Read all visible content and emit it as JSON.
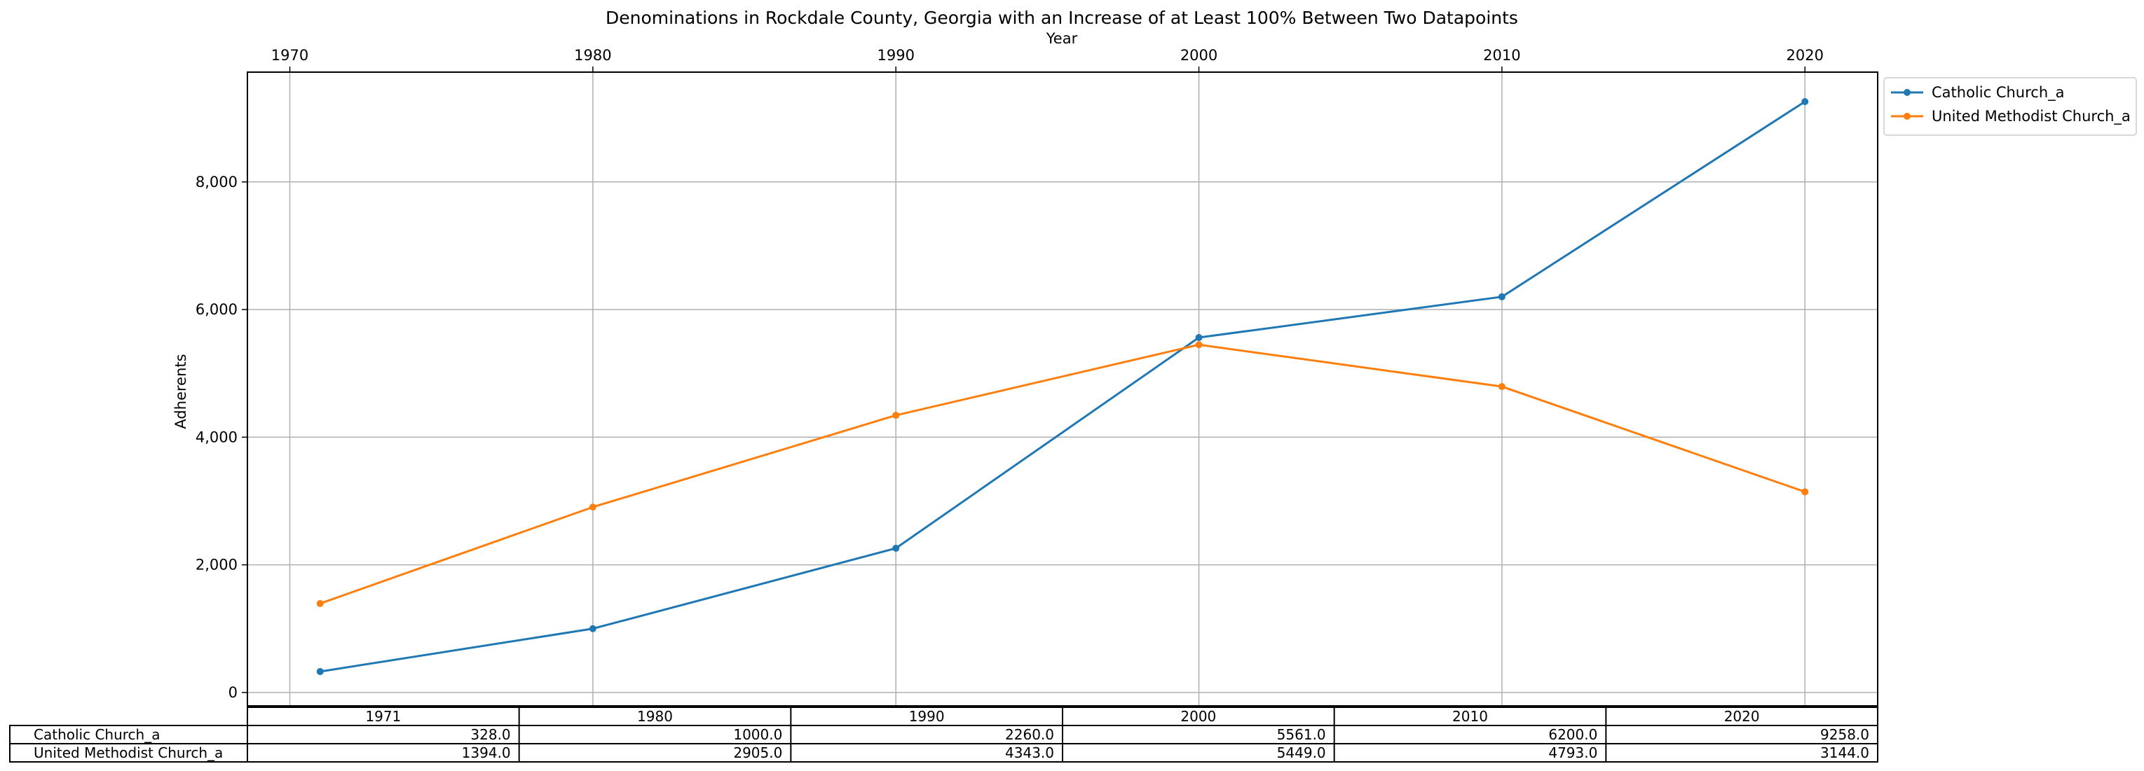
{
  "chart_data": {
    "type": "line",
    "title": "Denominations in Rockdale County, Georgia with an Increase of at Least 100% Between Two Datapoints",
    "xlabel": "Year",
    "ylabel": "Adherents",
    "x": [
      1971,
      1980,
      1990,
      2000,
      2010,
      2020
    ],
    "xlim": [
      1968.6,
      2022.4
    ],
    "ylim": [
      -210,
      9720
    ],
    "x_ticks": [
      "1970",
      "1980",
      "1990",
      "2000",
      "2010",
      "2020"
    ],
    "x_tick_values": [
      1970,
      1980,
      1990,
      2000,
      2010,
      2020
    ],
    "y_ticks": [
      "0",
      "2,000",
      "4,000",
      "6,000",
      "8,000"
    ],
    "y_tick_values": [
      0,
      2000,
      4000,
      6000,
      8000
    ],
    "grid": true,
    "legend_position": "outside-top-right",
    "series": [
      {
        "name": "Catholic Church_a",
        "color": "#1f77b4",
        "values": [
          328,
          1000,
          2260,
          5561,
          6200,
          9258
        ]
      },
      {
        "name": "United Methodist Church_a",
        "color": "#ff7f0e",
        "values": [
          1394,
          2905,
          4343,
          5449,
          4793,
          3144
        ]
      }
    ],
    "table": {
      "columns": [
        "1971",
        "1980",
        "1990",
        "2000",
        "2010",
        "2020"
      ],
      "rows": [
        {
          "label": "Catholic Church_a",
          "cells": [
            "328.0",
            "1000.0",
            "2260.0",
            "5561.0",
            "6200.0",
            "9258.0"
          ]
        },
        {
          "label": "United Methodist Church_a",
          "cells": [
            "1394.0",
            "2905.0",
            "4343.0",
            "5449.0",
            "4793.0",
            "3144.0"
          ]
        }
      ]
    }
  }
}
